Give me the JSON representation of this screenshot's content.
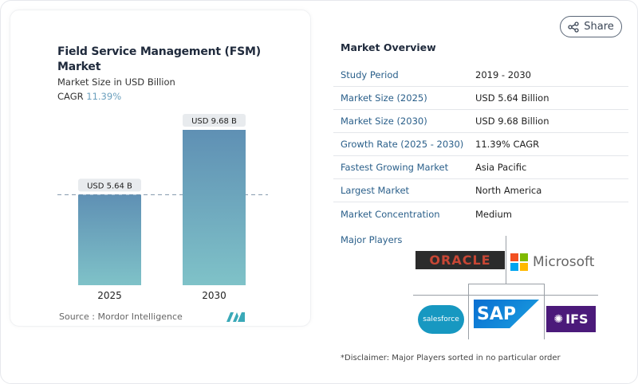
{
  "share_label": "Share",
  "chart_data": {
    "type": "bar",
    "title": "Field Service Management (FSM) Market",
    "subtitle": "Market Size in USD Billion",
    "cagr_label": "CAGR",
    "cagr_value": "11.39%",
    "categories": [
      "2025",
      "2030"
    ],
    "values": [
      5.64,
      9.68
    ],
    "data_labels": [
      "USD 5.64 B",
      "USD 9.68 B"
    ],
    "colors": {
      "bar_top": "#5f90b4",
      "bar_bottom": "#7fc2c8"
    },
    "source": "Source :  Mordor Intelligence"
  },
  "overview": {
    "title": "Market Overview",
    "rows": [
      {
        "k": "Study Period",
        "v": "2019 - 2030"
      },
      {
        "k": "Market Size (2025)",
        "v": "USD 5.64 Billion"
      },
      {
        "k": "Market Size (2030)",
        "v": "USD 9.68 Billion"
      },
      {
        "k": "Growth Rate (2025 - 2030)",
        "v": "11.39% CAGR"
      },
      {
        "k": "Fastest Growing Market",
        "v": "Asia Pacific"
      },
      {
        "k": "Largest Market",
        "v": "North America"
      },
      {
        "k": "Market Concentration",
        "v": "Medium"
      }
    ],
    "major_players_label": "Major Players",
    "players": [
      "ORACLE",
      "Microsoft",
      "salesforce",
      "SAP",
      "IFS"
    ],
    "disclaimer": "*Disclaimer: Major Players sorted in no particular order"
  }
}
